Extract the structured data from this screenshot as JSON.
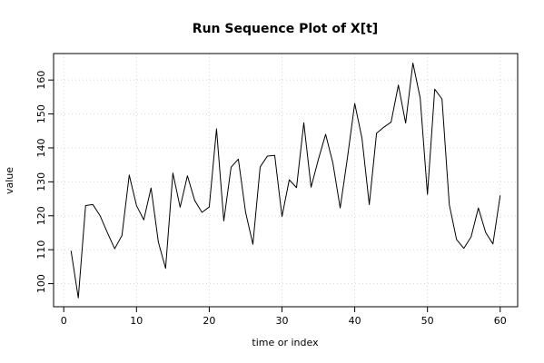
{
  "chart_data": {
    "type": "line",
    "title": "Run Sequence Plot of X[t]",
    "xlabel": "time or index",
    "ylabel": "value",
    "xlim": [
      -1.4,
      62.4
    ],
    "ylim": [
      93.2,
      167.8
    ],
    "xticks": [
      0,
      10,
      20,
      30,
      40,
      50,
      60
    ],
    "yticks": [
      100,
      110,
      120,
      130,
      140,
      150,
      160
    ],
    "grid": true,
    "series": [
      {
        "color": "#000000",
        "x": [
          1,
          2,
          3,
          4,
          5,
          6,
          7,
          8,
          9,
          10,
          11,
          12,
          13,
          14,
          15,
          16,
          17,
          18,
          19,
          20,
          21,
          22,
          23,
          24,
          25,
          26,
          27,
          28,
          29,
          30,
          31,
          32,
          33,
          34,
          35,
          36,
          37,
          38,
          39,
          40,
          41,
          42,
          43,
          44,
          45,
          46,
          47,
          48,
          49,
          50,
          51,
          52,
          53,
          54,
          55,
          56,
          57,
          58,
          59,
          60
        ],
        "y": [
          109.7,
          95.8,
          123.0,
          123.3,
          120.0,
          115.0,
          110.3,
          114.2,
          132.0,
          123.0,
          118.8,
          128.2,
          112.3,
          104.5,
          132.6,
          122.5,
          131.8,
          124.5,
          121.0,
          122.6,
          145.6,
          118.5,
          134.3,
          136.7,
          121.0,
          111.6,
          134.4,
          137.6,
          137.8,
          119.8,
          130.6,
          128.3,
          147.4,
          128.4,
          136.6,
          144.0,
          135.5,
          122.3,
          137.1,
          153.1,
          142.8,
          123.3,
          144.3,
          146.1,
          147.6,
          158.5,
          147.3,
          165.0,
          154.7,
          126.3,
          157.3,
          154.4,
          123.3,
          113.0,
          110.4,
          113.8,
          122.3,
          115.1,
          111.7,
          126.0
        ]
      }
    ]
  }
}
